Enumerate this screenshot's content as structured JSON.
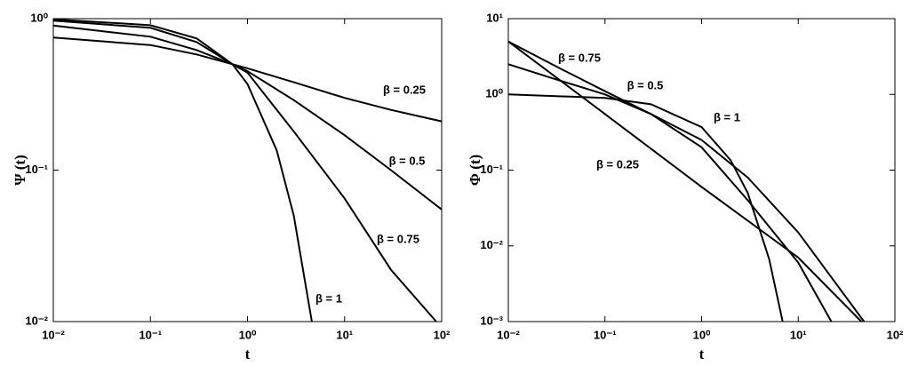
{
  "chart_data": [
    {
      "type": "line",
      "xlabel": "t",
      "ylabel": "Ψ (t)",
      "xscale": "log",
      "yscale": "log",
      "xlim": [
        0.01,
        100
      ],
      "ylim": [
        0.01,
        1
      ],
      "xticks": [
        {
          "value": 0.01,
          "label": "10⁻²"
        },
        {
          "value": 0.1,
          "label": "10⁻¹"
        },
        {
          "value": 1,
          "label": "10⁰"
        },
        {
          "value": 10,
          "label": "10¹"
        },
        {
          "value": 100,
          "label": "10²"
        }
      ],
      "yticks": [
        {
          "value": 0.01,
          "label": "10⁻²"
        },
        {
          "value": 0.1,
          "label": "10⁻¹"
        },
        {
          "value": 1,
          "label": "10⁰"
        }
      ],
      "series": [
        {
          "name": "β = 0.25",
          "color": "#000000",
          "x": [
            0.01,
            0.1,
            0.3,
            0.7,
            1,
            3,
            10,
            30,
            100
          ],
          "values": [
            0.75,
            0.67,
            0.58,
            0.5,
            0.47,
            0.38,
            0.3,
            0.25,
            0.21
          ]
        },
        {
          "name": "β = 0.5",
          "color": "#000000",
          "x": [
            0.01,
            0.1,
            0.3,
            0.7,
            1,
            3,
            10,
            30,
            100
          ],
          "values": [
            0.9,
            0.76,
            0.62,
            0.5,
            0.45,
            0.29,
            0.17,
            0.1,
            0.055
          ]
        },
        {
          "name": "β = 0.75",
          "color": "#000000",
          "x": [
            0.01,
            0.1,
            0.3,
            0.7,
            1,
            3,
            10,
            30,
            88
          ],
          "values": [
            0.97,
            0.87,
            0.7,
            0.5,
            0.44,
            0.18,
            0.065,
            0.022,
            0.01
          ]
        },
        {
          "name": "β = 1",
          "color": "#000000",
          "x": [
            0.01,
            0.1,
            0.3,
            0.7,
            1,
            2,
            3,
            4.6
          ],
          "values": [
            0.99,
            0.905,
            0.74,
            0.5,
            0.37,
            0.135,
            0.05,
            0.01
          ]
        }
      ]
    },
    {
      "type": "line",
      "xlabel": "t",
      "ylabel": "Φ (t)",
      "xscale": "log",
      "yscale": "log",
      "xlim": [
        0.01,
        100
      ],
      "ylim": [
        0.001,
        10
      ],
      "xticks": [
        {
          "value": 0.01,
          "label": "10⁻²"
        },
        {
          "value": 0.1,
          "label": "10⁻¹"
        },
        {
          "value": 1,
          "label": "10⁰"
        },
        {
          "value": 10,
          "label": "10¹"
        },
        {
          "value": 100,
          "label": "10²"
        }
      ],
      "yticks": [
        {
          "value": 0.001,
          "label": "10⁻³"
        },
        {
          "value": 0.01,
          "label": "10⁻²"
        },
        {
          "value": 0.1,
          "label": "10⁻¹"
        },
        {
          "value": 1,
          "label": "10⁰"
        },
        {
          "value": 10,
          "label": "10¹"
        }
      ],
      "series": [
        {
          "name": "β = 0.25",
          "color": "#000000",
          "x": [
            0.01,
            0.1,
            1,
            10,
            45
          ],
          "values": [
            5,
            0.55,
            0.06,
            0.007,
            0.001
          ]
        },
        {
          "name": "β = 0.5",
          "color": "#000000",
          "x": [
            0.01,
            0.03,
            0.1,
            0.3,
            1,
            3,
            10,
            48
          ],
          "values": [
            2.5,
            1.6,
            1.0,
            0.55,
            0.25,
            0.08,
            0.015,
            0.001
          ]
        },
        {
          "name": "β = 0.75",
          "color": "#000000",
          "x": [
            0.01,
            0.03,
            0.1,
            0.3,
            1,
            3,
            10,
            22
          ],
          "values": [
            5,
            2.4,
            1.1,
            0.55,
            0.2,
            0.04,
            0.006,
            0.001
          ]
        },
        {
          "name": "β = 1",
          "color": "#000000",
          "x": [
            0.01,
            0.1,
            0.3,
            1,
            2,
            3,
            5,
            6.9
          ],
          "values": [
            1,
            0.9,
            0.74,
            0.37,
            0.135,
            0.05,
            0.0067,
            0.001
          ]
        }
      ]
    }
  ]
}
